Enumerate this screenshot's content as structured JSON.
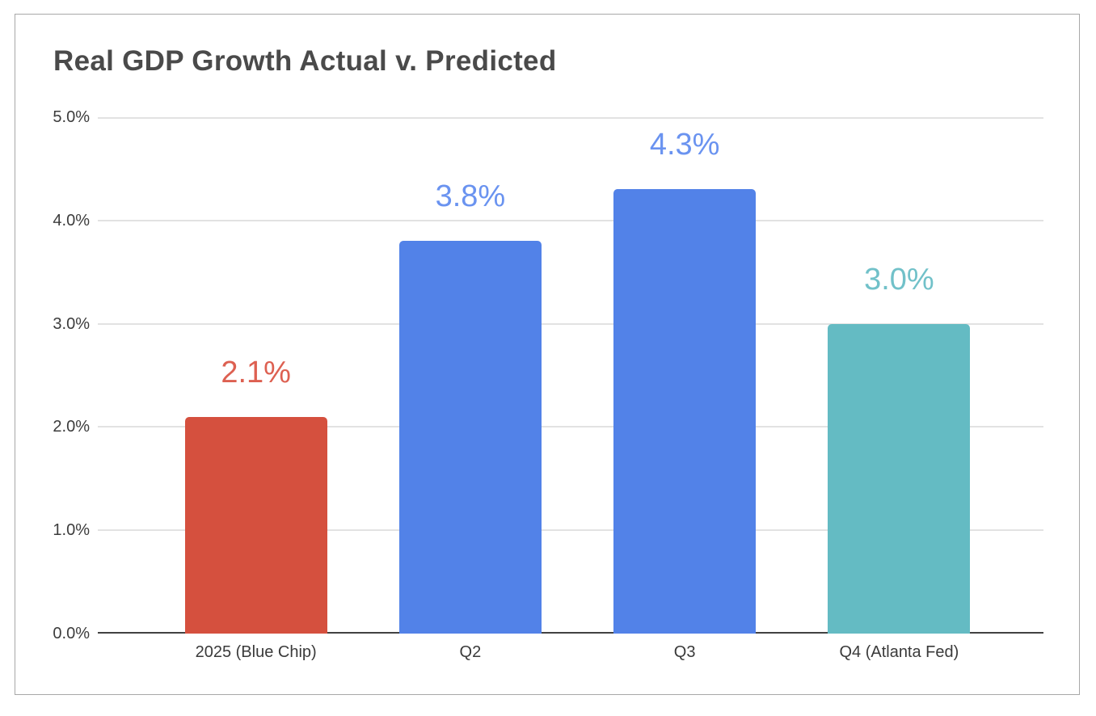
{
  "chart": {
    "title": "Real GDP Growth Actual v. Predicted"
  },
  "chart_data": {
    "type": "bar",
    "title": "Real GDP Growth Actual v. Predicted",
    "categories": [
      "2025 (Blue Chip)",
      "Q2",
      "Q3",
      "Q4 (Atlanta Fed)"
    ],
    "values": [
      2.1,
      3.8,
      4.3,
      3.0
    ],
    "data_labels": [
      "2.1%",
      "3.8%",
      "4.3%",
      "3.0%"
    ],
    "bar_colors": [
      "#d5503e",
      "#5282e8",
      "#5282e8",
      "#64bbc3"
    ],
    "label_colors": [
      "#dd6051",
      "#6a93f0",
      "#6a93f0",
      "#71c1c9"
    ],
    "xlabel": "",
    "ylabel": "",
    "ylim": [
      0,
      5
    ],
    "yticks": [
      0,
      1,
      2,
      3,
      4,
      5
    ],
    "ytick_labels": [
      "0.0%",
      "1.0%",
      "2.0%",
      "3.0%",
      "4.0%",
      "5.0%"
    ],
    "grid": true,
    "legend": false,
    "gridline_color": "#e2e2e2",
    "axis_line_color": "#424242",
    "title_color": "#4a4a4a",
    "frame_border_color": "#a8a8a8",
    "background_color": "#ffffff"
  }
}
